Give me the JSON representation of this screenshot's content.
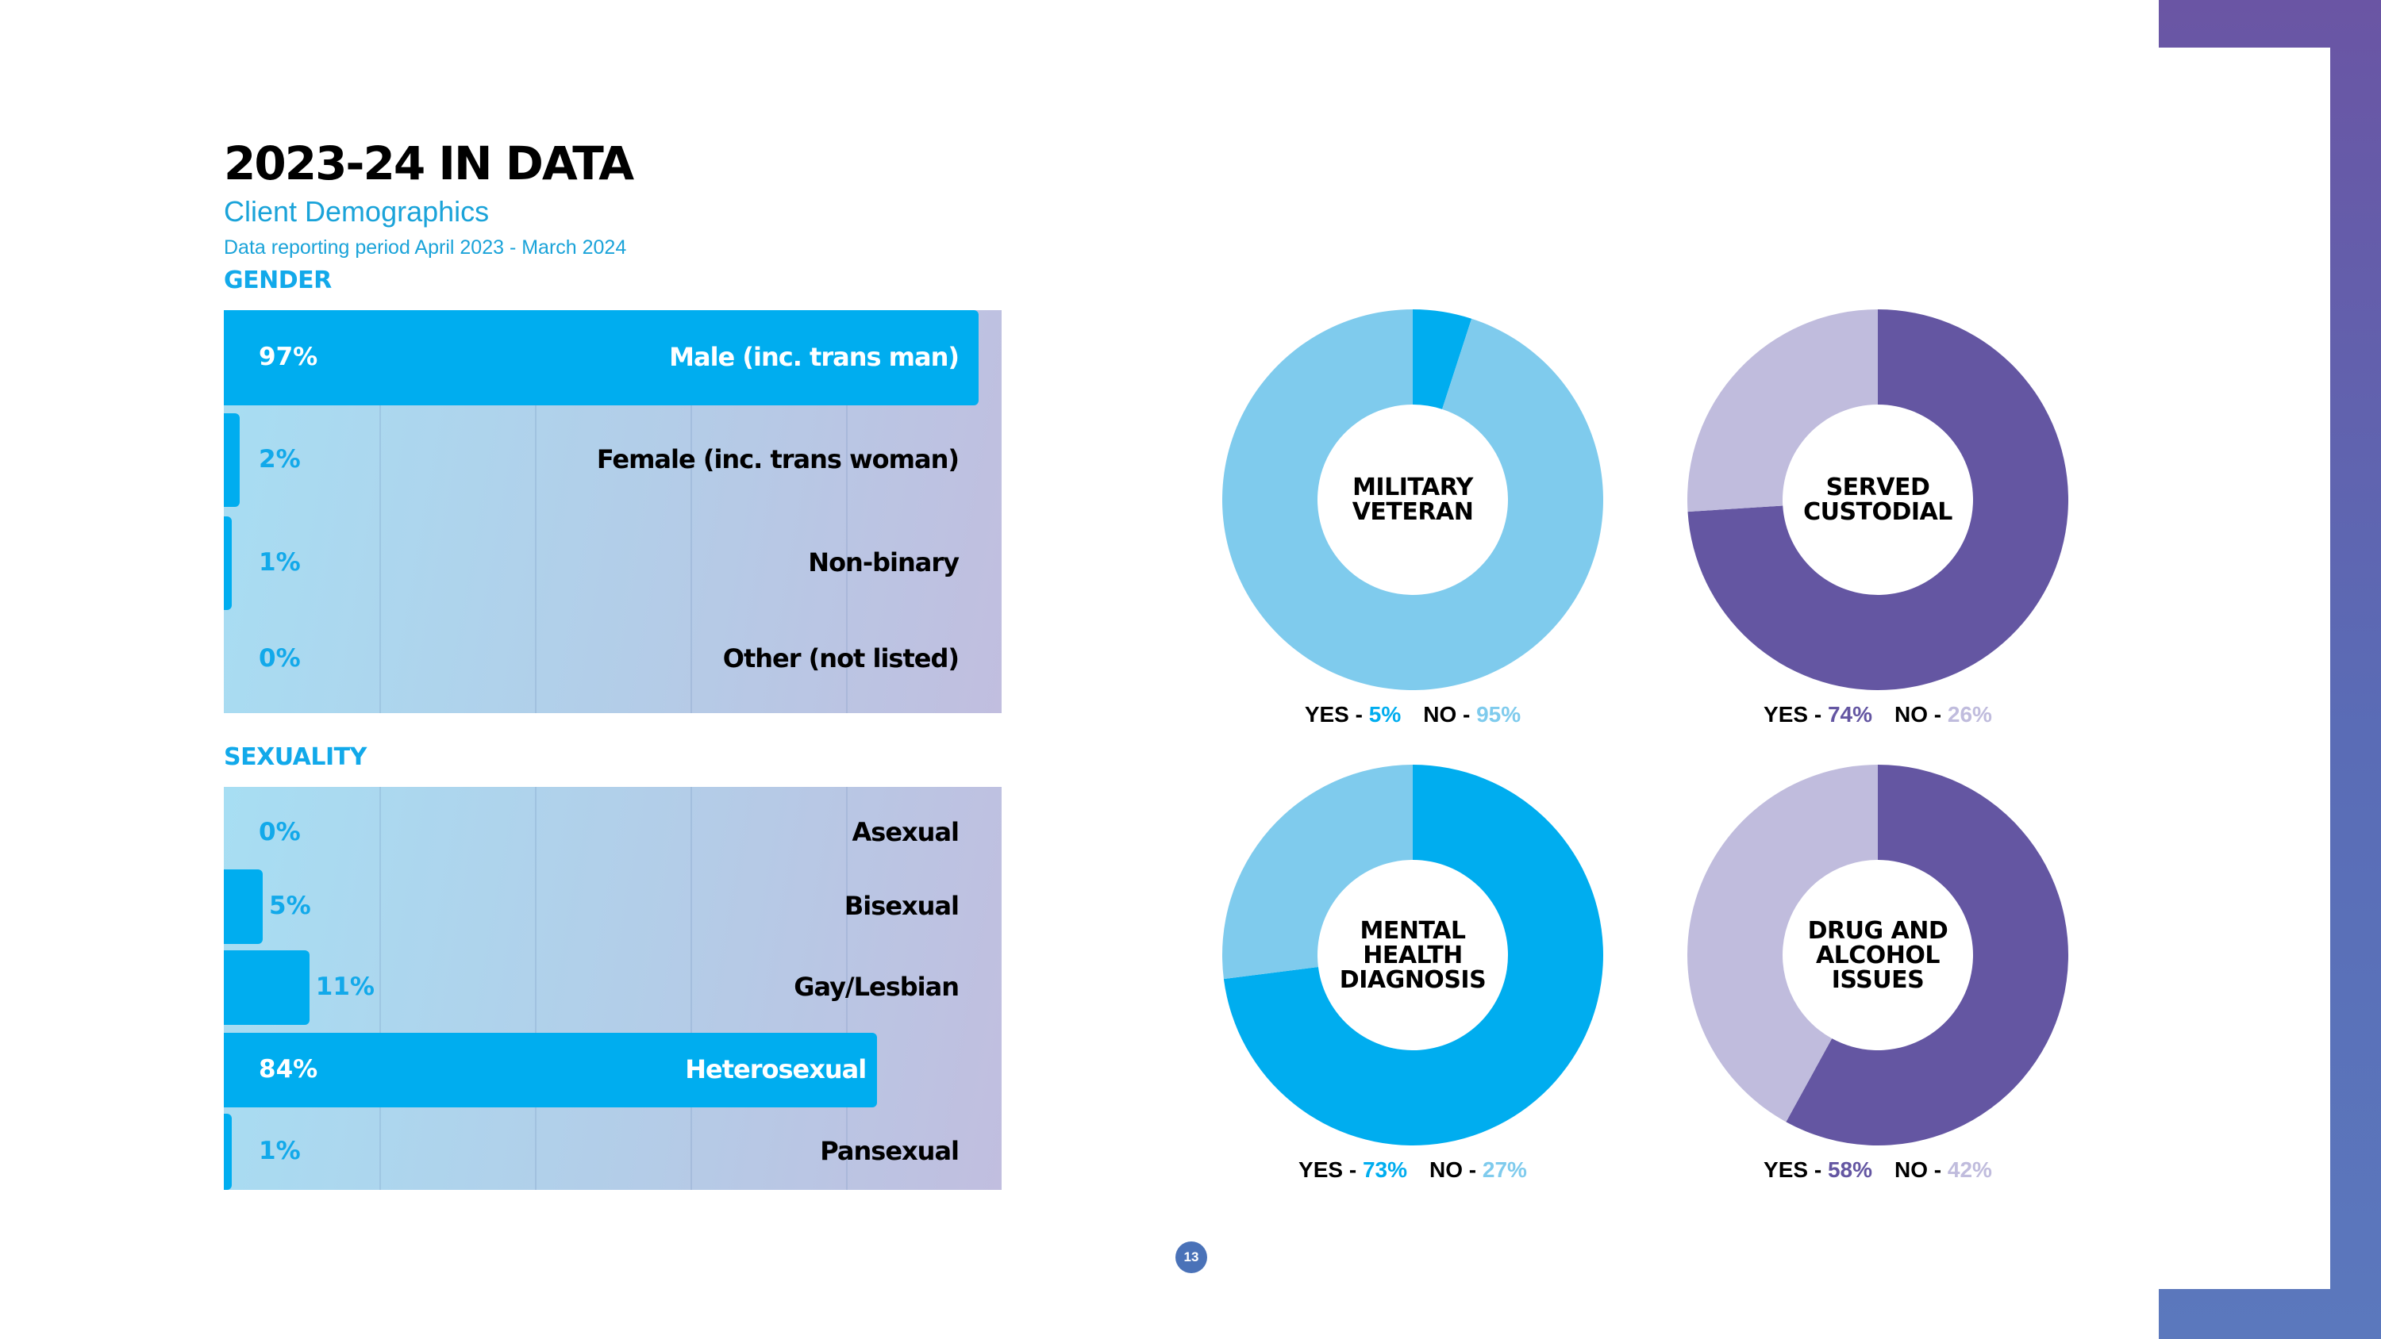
{
  "title": "2023-24 IN DATA",
  "subtitle": "Client Demographics",
  "period": "Data reporting period April 2023 - March 2024",
  "page_number": "13",
  "colors": {
    "bright_blue": "#00adef",
    "light_blue": "#7fcbed",
    "purple": "#6456a2",
    "light_purple": "#c0bcdd",
    "text_blue": "#12a9ea"
  },
  "chart_data": [
    {
      "type": "bar",
      "title": "GENDER",
      "orientation": "horizontal",
      "xlim": [
        0,
        100
      ],
      "categories": [
        "Male (inc. trans man)",
        "Female (inc. trans woman)",
        "Non-binary",
        "Other (not listed)"
      ],
      "values": [
        97,
        2,
        1,
        0
      ],
      "labels": [
        "97%",
        "2%",
        "1%",
        "0%"
      ]
    },
    {
      "type": "bar",
      "title": "SEXUALITY",
      "orientation": "horizontal",
      "xlim": [
        0,
        100
      ],
      "categories": [
        "Asexual",
        "Bisexual",
        "Gay/Lesbian",
        "Heterosexual",
        "Pansexual"
      ],
      "values": [
        0,
        5,
        11,
        84,
        1
      ],
      "labels": [
        "0%",
        "5%",
        "11%",
        "84%",
        "1%"
      ]
    },
    {
      "type": "pie",
      "title": "MILITARY VETERAN",
      "title_lines": [
        "MILITARY",
        "VETERAN"
      ],
      "slices": [
        {
          "name": "YES",
          "value": 5,
          "label": "5%",
          "color": "#00adef"
        },
        {
          "name": "NO",
          "value": 95,
          "label": "95%",
          "color": "#7fcbed"
        }
      ]
    },
    {
      "type": "pie",
      "title": "SERVED CUSTODIAL",
      "title_lines": [
        "SERVED",
        "CUSTODIAL"
      ],
      "slices": [
        {
          "name": "YES",
          "value": 74,
          "label": "74%",
          "color": "#6456a2"
        },
        {
          "name": "NO",
          "value": 26,
          "label": "26%",
          "color": "#c0bcdd"
        }
      ]
    },
    {
      "type": "pie",
      "title": "MENTAL HEALTH DIAGNOSIS",
      "title_lines": [
        "MENTAL",
        "HEALTH",
        "DIAGNOSIS"
      ],
      "slices": [
        {
          "name": "YES",
          "value": 73,
          "label": "73%",
          "color": "#00adef"
        },
        {
          "name": "NO",
          "value": 27,
          "label": "27%",
          "color": "#7fcbed"
        }
      ]
    },
    {
      "type": "pie",
      "title": "DRUG AND ALCOHOL ISSUES",
      "title_lines": [
        "DRUG AND",
        "ALCOHOL",
        "ISSUES"
      ],
      "slices": [
        {
          "name": "YES",
          "value": 58,
          "label": "58%",
          "color": "#6456a2"
        },
        {
          "name": "NO",
          "value": 42,
          "label": "42%",
          "color": "#c0bcdd"
        }
      ]
    }
  ]
}
